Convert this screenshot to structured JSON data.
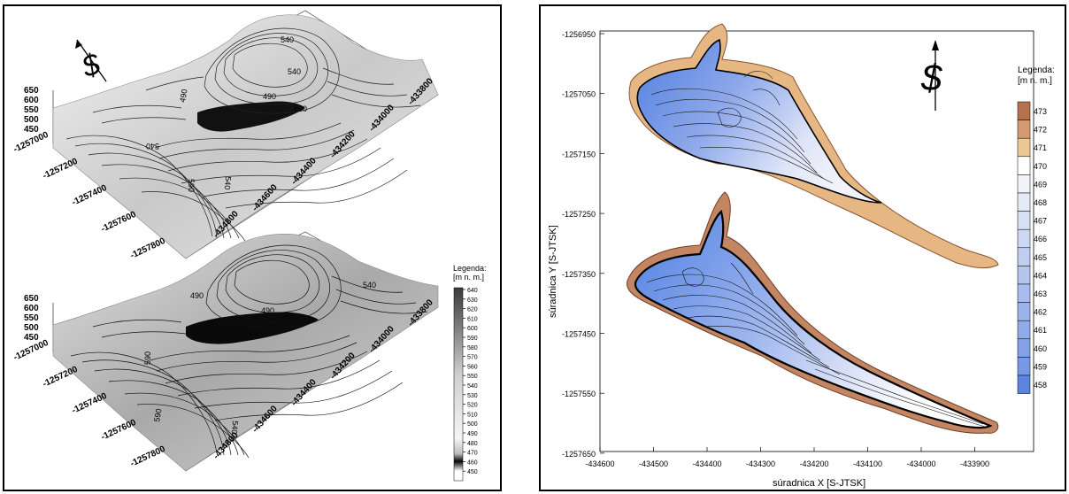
{
  "left": {
    "z_ticks": [
      "650",
      "600",
      "550",
      "500",
      "450"
    ],
    "top_block": {
      "y_ticks": [
        "-1257000",
        "-1257200",
        "-1257400",
        "-1257600",
        "-1257800"
      ],
      "x_ticks": [
        "-434800",
        "-434600",
        "-434400",
        "-434200",
        "-434000",
        "-433800"
      ],
      "contour_labels": [
        "540",
        "540",
        "490",
        "490",
        "590",
        "540",
        "590",
        "540"
      ]
    },
    "bottom_block": {
      "y_ticks": [
        "-1257000",
        "-1257200",
        "-1257400",
        "-1257600",
        "-1257800"
      ],
      "x_ticks": [
        "-434800",
        "-434600",
        "-434400",
        "-434200",
        "-434000",
        "-433800"
      ],
      "contour_labels": [
        "490",
        "490",
        "540",
        "590",
        "540",
        "590"
      ]
    },
    "legend": {
      "title_line1": "Legenda:",
      "title_line2": "[m n. m.]",
      "levels": [
        "640",
        "630",
        "620",
        "610",
        "600",
        "590",
        "580",
        "570",
        "560",
        "550",
        "540",
        "530",
        "520",
        "510",
        "500",
        "490",
        "480",
        "470",
        "460",
        "450"
      ]
    },
    "north_symbol": "$"
  },
  "right": {
    "north_symbol": "$",
    "y_axis_label": "súradnica Y [S-JTSK]",
    "x_axis_label": "súradnica X [S-JTSK]",
    "y_ticks": [
      "-1256950",
      "-1257050",
      "-1257150",
      "-1257250",
      "-1257350",
      "-1257450",
      "-1257550",
      "-1257650"
    ],
    "x_ticks": [
      "-434600",
      "-434500",
      "-434400",
      "-434300",
      "-434200",
      "-434100",
      "-434000",
      "-433900"
    ],
    "legend": {
      "title_line1": "Legenda:",
      "title_line2": "[m n. m.]",
      "levels": [
        "473",
        "472",
        "471",
        "470",
        "469",
        "468",
        "467",
        "466",
        "465",
        "464",
        "463",
        "462",
        "461",
        "460",
        "459",
        "458"
      ]
    },
    "colors": {
      "deep": "#5a86e0",
      "shallow": "#e4eaf8",
      "shore_brown": "#b5724f",
      "shore_tan": "#e6b783"
    }
  }
}
